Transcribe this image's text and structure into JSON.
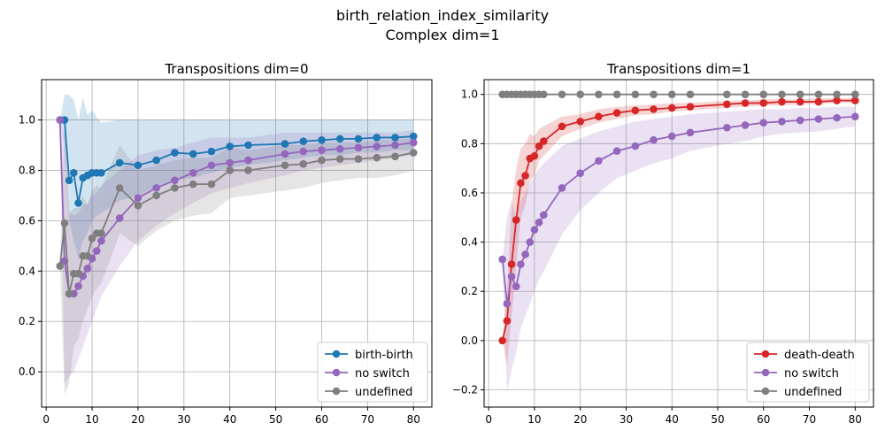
{
  "suptitle_line1": "birth_relation_index_similarity",
  "suptitle_line2": "Complex dim=1",
  "chart_data": [
    {
      "type": "line",
      "title": "Transpositions dim=0",
      "xlabel": "",
      "ylabel": "",
      "xlim": [
        -1,
        84
      ],
      "ylim": [
        -0.14,
        1.16
      ],
      "xticks": [
        0,
        10,
        20,
        30,
        40,
        50,
        60,
        70,
        80
      ],
      "yticks": [
        0.0,
        0.2,
        0.4,
        0.6,
        0.8,
        1.0
      ],
      "grid": true,
      "legend_position": "bottom-right",
      "x": [
        3,
        4,
        5,
        6,
        7,
        8,
        9,
        10,
        11,
        12,
        16,
        20,
        24,
        28,
        32,
        36,
        40,
        44,
        52,
        56,
        60,
        64,
        68,
        72,
        76,
        80
      ],
      "series": [
        {
          "name": "birth-birth",
          "color": "#1f77b4",
          "values": [
            1.0,
            1.0,
            0.76,
            0.79,
            0.67,
            0.77,
            0.78,
            0.79,
            0.79,
            0.79,
            0.83,
            0.82,
            0.84,
            0.87,
            0.865,
            0.875,
            0.895,
            0.9,
            0.905,
            0.915,
            0.92,
            0.925,
            0.925,
            0.93,
            0.93,
            0.935
          ],
          "lower": [
            1.0,
            0.9,
            0.6,
            0.52,
            0.45,
            0.52,
            0.55,
            0.6,
            0.62,
            0.63,
            0.68,
            0.7,
            0.73,
            0.76,
            0.77,
            0.79,
            0.81,
            0.82,
            0.84,
            0.85,
            0.86,
            0.86,
            0.87,
            0.87,
            0.88,
            0.88
          ],
          "upper": [
            1.0,
            1.1,
            1.1,
            1.08,
            1.0,
            1.09,
            1.02,
            1.04,
            1.01,
            0.99,
            1.0,
            1.0,
            1.0,
            1.0,
            1.0,
            1.0,
            1.0,
            1.0,
            1.0,
            1.0,
            1.0,
            1.0,
            1.0,
            1.0,
            1.0,
            1.0
          ]
        },
        {
          "name": "no switch",
          "color": "#9467bd",
          "values": [
            1.0,
            0.44,
            0.31,
            0.31,
            0.34,
            0.38,
            0.41,
            0.45,
            0.48,
            0.52,
            0.61,
            0.69,
            0.73,
            0.76,
            0.79,
            0.82,
            0.83,
            0.84,
            0.865,
            0.875,
            0.88,
            0.885,
            0.89,
            0.895,
            0.9,
            0.91
          ],
          "lower": [
            1.0,
            -0.05,
            -0.02,
            0.0,
            0.05,
            0.1,
            0.15,
            0.2,
            0.25,
            0.3,
            0.42,
            0.52,
            0.58,
            0.63,
            0.67,
            0.71,
            0.73,
            0.75,
            0.78,
            0.8,
            0.81,
            0.82,
            0.83,
            0.84,
            0.85,
            0.86
          ],
          "upper": [
            1.0,
            0.93,
            0.64,
            0.62,
            0.63,
            0.66,
            0.67,
            0.7,
            0.71,
            0.74,
            0.8,
            0.86,
            0.88,
            0.89,
            0.91,
            0.93,
            0.93,
            0.93,
            0.95,
            0.95,
            0.95,
            0.95,
            0.95,
            0.95,
            0.95,
            0.96
          ]
        },
        {
          "name": "undefined",
          "color": "#7f7f7f",
          "values": [
            0.42,
            0.59,
            0.31,
            0.39,
            0.39,
            0.46,
            0.46,
            0.53,
            0.55,
            0.55,
            0.73,
            0.66,
            0.7,
            0.73,
            0.745,
            0.745,
            0.8,
            0.8,
            0.82,
            0.825,
            0.84,
            0.845,
            0.845,
            0.85,
            0.855,
            0.87
          ],
          "lower": [
            0.42,
            -0.09,
            -0.05,
            0.1,
            0.13,
            0.2,
            0.25,
            0.3,
            0.33,
            0.35,
            0.55,
            0.5,
            0.56,
            0.6,
            0.62,
            0.63,
            0.69,
            0.7,
            0.72,
            0.73,
            0.75,
            0.76,
            0.77,
            0.77,
            0.78,
            0.8
          ],
          "upper": [
            0.42,
            1.0,
            0.62,
            0.65,
            0.65,
            0.7,
            0.66,
            0.72,
            0.74,
            0.73,
            0.9,
            0.8,
            0.82,
            0.84,
            0.85,
            0.85,
            0.89,
            0.88,
            0.9,
            0.9,
            0.91,
            0.91,
            0.91,
            0.92,
            0.92,
            0.93
          ]
        }
      ]
    },
    {
      "type": "line",
      "title": "Transpositions dim=1",
      "xlabel": "",
      "ylabel": "",
      "xlim": [
        -1,
        84
      ],
      "ylim": [
        -0.27,
        1.06
      ],
      "xticks": [
        0,
        10,
        20,
        30,
        40,
        50,
        60,
        70,
        80
      ],
      "yticks": [
        -0.2,
        0.0,
        0.2,
        0.4,
        0.6,
        0.8,
        1.0
      ],
      "grid": true,
      "legend_position": "bottom-right",
      "x": [
        3,
        4,
        5,
        6,
        7,
        8,
        9,
        10,
        11,
        12,
        16,
        20,
        24,
        28,
        32,
        36,
        40,
        44,
        52,
        56,
        60,
        64,
        68,
        72,
        76,
        80
      ],
      "series": [
        {
          "name": "death-death",
          "color": "#d62728",
          "values": [
            0.0,
            0.08,
            0.31,
            0.49,
            0.64,
            0.67,
            0.74,
            0.75,
            0.79,
            0.81,
            0.87,
            0.89,
            0.91,
            0.925,
            0.935,
            0.94,
            0.945,
            0.95,
            0.96,
            0.965,
            0.965,
            0.97,
            0.97,
            0.97,
            0.975,
            0.975
          ],
          "lower": [
            0.0,
            -0.1,
            0.1,
            0.3,
            0.5,
            0.55,
            0.65,
            0.67,
            0.73,
            0.75,
            0.83,
            0.86,
            0.885,
            0.9,
            0.915,
            0.92,
            0.93,
            0.935,
            0.945,
            0.95,
            0.955,
            0.955,
            0.96,
            0.96,
            0.965,
            0.965
          ],
          "upper": [
            0.0,
            0.2,
            0.55,
            0.7,
            0.78,
            0.8,
            0.84,
            0.83,
            0.86,
            0.87,
            0.91,
            0.92,
            0.94,
            0.95,
            0.955,
            0.96,
            0.965,
            0.965,
            0.975,
            0.975,
            0.98,
            0.98,
            0.98,
            0.985,
            0.985,
            0.985
          ]
        },
        {
          "name": "no switch",
          "color": "#9467bd",
          "values": [
            0.33,
            0.15,
            0.26,
            0.22,
            0.31,
            0.35,
            0.4,
            0.45,
            0.48,
            0.51,
            0.62,
            0.68,
            0.73,
            0.77,
            0.79,
            0.815,
            0.83,
            0.845,
            0.865,
            0.875,
            0.885,
            0.89,
            0.895,
            0.9,
            0.905,
            0.91
          ],
          "lower": [
            0.33,
            -0.21,
            -0.12,
            -0.05,
            0.05,
            0.1,
            0.15,
            0.2,
            0.25,
            0.28,
            0.43,
            0.53,
            0.6,
            0.66,
            0.69,
            0.72,
            0.74,
            0.77,
            0.8,
            0.81,
            0.83,
            0.84,
            0.845,
            0.85,
            0.86,
            0.87
          ],
          "upper": [
            0.33,
            0.5,
            0.57,
            0.5,
            0.57,
            0.6,
            0.64,
            0.67,
            0.7,
            0.72,
            0.79,
            0.82,
            0.85,
            0.87,
            0.89,
            0.9,
            0.91,
            0.92,
            0.93,
            0.935,
            0.94,
            0.94,
            0.945,
            0.945,
            0.95,
            0.95
          ]
        },
        {
          "name": "undefined",
          "color": "#7f7f7f",
          "values": [
            1.0,
            1.0,
            1.0,
            1.0,
            1.0,
            1.0,
            1.0,
            1.0,
            1.0,
            1.0,
            1.0,
            1.0,
            1.0,
            1.0,
            1.0,
            1.0,
            1.0,
            1.0,
            1.0,
            1.0,
            1.0,
            1.0,
            1.0,
            1.0,
            1.0,
            1.0
          ],
          "lower": [
            1.0,
            1.0,
            1.0,
            1.0,
            1.0,
            1.0,
            1.0,
            1.0,
            1.0,
            1.0,
            1.0,
            1.0,
            1.0,
            1.0,
            1.0,
            1.0,
            1.0,
            1.0,
            1.0,
            1.0,
            1.0,
            1.0,
            1.0,
            1.0,
            1.0,
            1.0
          ],
          "upper": [
            1.0,
            1.0,
            1.0,
            1.0,
            1.0,
            1.0,
            1.0,
            1.0,
            1.0,
            1.0,
            1.0,
            1.0,
            1.0,
            1.0,
            1.0,
            1.0,
            1.0,
            1.0,
            1.0,
            1.0,
            1.0,
            1.0,
            1.0,
            1.0,
            1.0,
            1.0
          ]
        }
      ]
    }
  ]
}
